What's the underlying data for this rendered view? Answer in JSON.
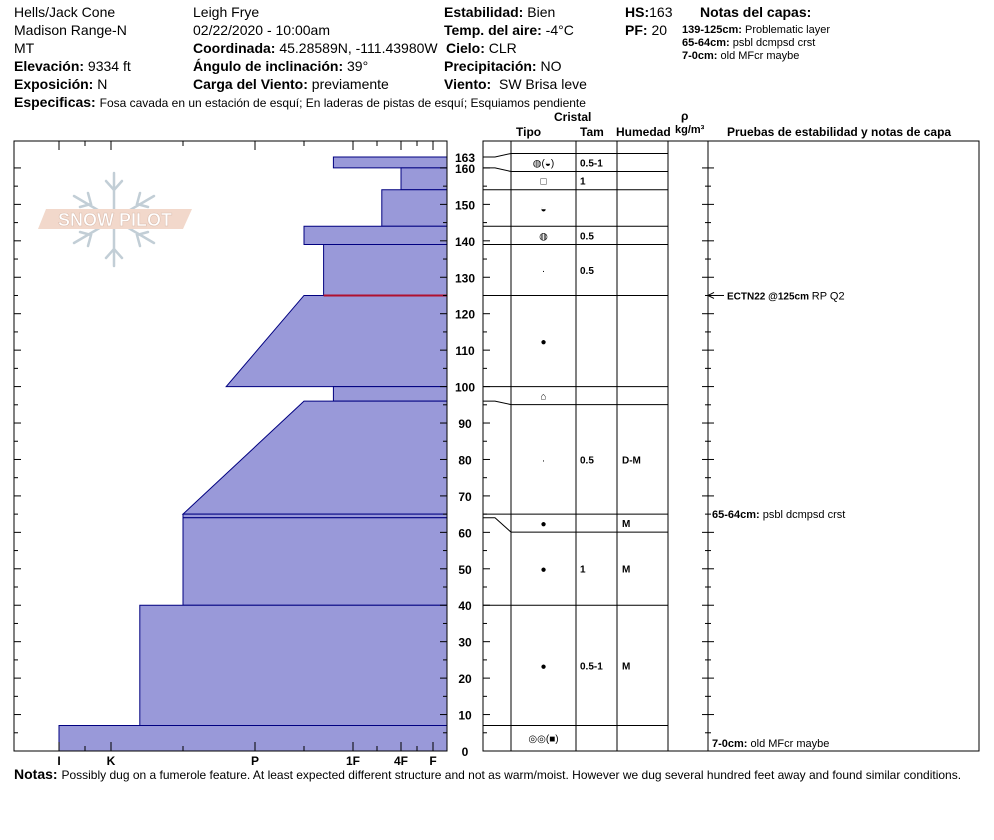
{
  "header": {
    "location": "Hells/Jack Cone",
    "range": "Madison Range-N",
    "state": "MT",
    "elevation_label": "Elevación:",
    "elevation": "9334 ft",
    "aspect_label": "Exposición:",
    "aspect": "N",
    "observer": "Leigh Frye",
    "datetime": "02/22/2020 - 10:00am",
    "coord_label": "Coordinada:",
    "coord": "45.28589N, -111.43980W",
    "slope_label": "Ángulo de inclinación:",
    "slope": "39°",
    "wind_load_label": "Carga del Viento:",
    "wind_load": "previamente",
    "stability_label": "Estabilidad:",
    "stability": "Bien",
    "air_temp_label": "Temp. del aire:",
    "air_temp": "-4°C",
    "sky_label": "Cielo:",
    "sky": "CLR",
    "precip_label": "Precipitación:",
    "precip": "NO",
    "wind_label": "Viento:",
    "wind": "SW Brisa leve",
    "hs_label": "HS:",
    "hs": "163",
    "pf_label": "PF:",
    "pf": "20",
    "layer_notes_title": "Notas del capas:",
    "layer_notes": [
      {
        "range": "139-125cm:",
        "text": "Problematic layer"
      },
      {
        "range": "65-64cm:",
        "text": "psbl dcmpsd crst"
      },
      {
        "range": "7-0cm:",
        "text": "old MFcr maybe"
      }
    ],
    "specifics_label": "Especificas:",
    "specifics": "Fosa cavada en un estación de esquí; En laderas de pistas de esquí; Esquiamos pendiente"
  },
  "columns": {
    "crystal": "Cristal",
    "type": "Tipo",
    "size": "Tam",
    "moisture": "Humedad",
    "rho": "ρ",
    "density_unit": "kg/m³",
    "tests": "Pruebas de estabilidad y notas de capa"
  },
  "logo": {
    "text": "SNOW PILOT"
  },
  "notes_label": "Notas:",
  "notes": "Possibly dug on a fumerole feature. At least expected different structure and not as warm/moist. However we dug several hundred feet away and found similar conditions.",
  "colors": {
    "fill": "#9999d9",
    "edge": "#000080",
    "failure": "#b01030"
  },
  "chart_data": {
    "type": "snow_profile",
    "y_ticks": [
      0,
      10,
      20,
      30,
      40,
      50,
      60,
      70,
      80,
      90,
      100,
      110,
      120,
      130,
      140,
      150,
      160,
      163
    ],
    "ylim": [
      0,
      163
    ],
    "hardness_scale": [
      "I",
      "K",
      "P",
      "1F",
      "4F",
      "F"
    ],
    "hardness_values": [
      4,
      3,
      2,
      1,
      0.5,
      0.1
    ],
    "layers": [
      {
        "top": 163,
        "bottom": 160,
        "hardness_top": 1.2,
        "hardness_bottom": 1.2,
        "type_symbol": "◍(◒)",
        "size": "0.5-1",
        "moisture": ""
      },
      {
        "top": 160,
        "bottom": 154,
        "hardness_top": 0.5,
        "hardness_bottom": 0.5,
        "type_symbol": "□",
        "size": "1",
        "moisture": ""
      },
      {
        "top": 154,
        "bottom": 144,
        "hardness_top": 0.7,
        "hardness_bottom": 0.7,
        "type_symbol": "◒",
        "size": "",
        "moisture": ""
      },
      {
        "top": 144,
        "bottom": 139,
        "hardness_top": 1.5,
        "hardness_bottom": 1.5,
        "type_symbol": "◍",
        "size": "0.5",
        "moisture": ""
      },
      {
        "top": 139,
        "bottom": 125,
        "hardness_top": 1.3,
        "hardness_bottom": 1.3,
        "type_symbol": "·",
        "size": "0.5",
        "moisture": ""
      },
      {
        "top": 125,
        "bottom": 100,
        "hardness_top": 1.5,
        "hardness_bottom": 2.2,
        "type_symbol": "●",
        "size": "",
        "moisture": ""
      },
      {
        "top": 100,
        "bottom": 96,
        "hardness_top": 1.2,
        "hardness_bottom": 1.2,
        "type_symbol": "⌂",
        "size": "",
        "moisture": ""
      },
      {
        "top": 96,
        "bottom": 65,
        "hardness_top": 1.5,
        "hardness_bottom": 2.5,
        "type_symbol": "·",
        "size": "0.5",
        "moisture": "D-M"
      },
      {
        "top": 65,
        "bottom": 64,
        "hardness_top": 2.5,
        "hardness_bottom": 2.5,
        "type_symbol": "●",
        "size": "",
        "moisture": "M"
      },
      {
        "top": 64,
        "bottom": 40,
        "hardness_top": 2.5,
        "hardness_bottom": 2.5,
        "type_symbol": "●",
        "size": "1",
        "moisture": "M"
      },
      {
        "top": 40,
        "bottom": 7,
        "hardness_top": 2.8,
        "hardness_bottom": 2.8,
        "type_symbol": "●",
        "size": "0.5-1",
        "moisture": "M"
      },
      {
        "top": 7,
        "bottom": 0,
        "hardness_top": 4,
        "hardness_bottom": 4,
        "type_symbol": "◎◎(■)",
        "size": "",
        "moisture": ""
      }
    ],
    "failure_layer_height": 125,
    "stability_tests": [
      {
        "height": 125,
        "result": "ECTN22 @125cm",
        "note": "RP Q2"
      }
    ],
    "layer_notes": [
      {
        "height": 65,
        "range": "65-64cm:",
        "text": "psbl dcmpsd crst"
      },
      {
        "height": 0,
        "range": "7-0cm:",
        "text": "old MFcr maybe"
      }
    ]
  }
}
